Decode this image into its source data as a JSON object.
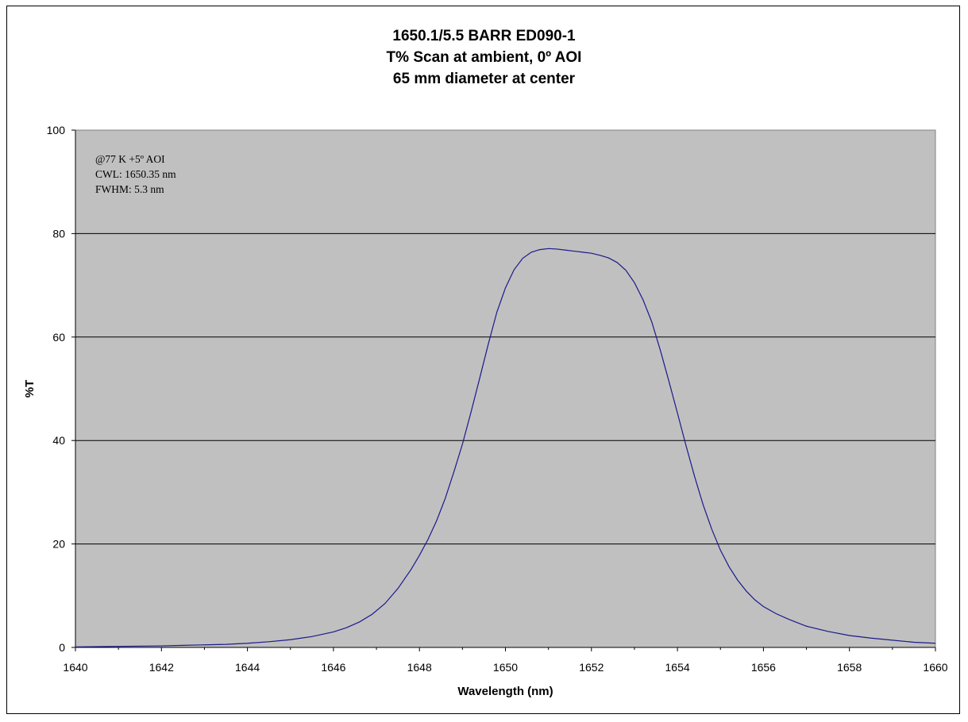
{
  "chart_data": {
    "type": "line",
    "title": "1650.1/5.5 BARR ED090-1",
    "subtitle_lines": [
      "T%  Scan at ambient, 0º AOI",
      "65 mm diameter at center"
    ],
    "xlabel": "Wavelength (nm)",
    "ylabel": "%T",
    "xlim": [
      1640,
      1660
    ],
    "ylim": [
      0,
      100
    ],
    "x_ticks": [
      1640,
      1642,
      1644,
      1646,
      1648,
      1650,
      1652,
      1654,
      1656,
      1658,
      1660
    ],
    "x_tick_labels": [
      "1640",
      "1642",
      "1644",
      "1646",
      "1648",
      "1650",
      "1652",
      "1654",
      "1656",
      "1658",
      "1660"
    ],
    "y_ticks": [
      0,
      20,
      40,
      60,
      80,
      100
    ],
    "y_tick_labels": [
      "0",
      "20",
      "40",
      "60",
      "80",
      "100"
    ],
    "grid": "horizontal",
    "legend": "none",
    "plot_background": "#c0c0c0",
    "line_color": "#1a1a8c",
    "annotations": [
      "@77 K   +5º AOI",
      "CWL: 1650.35 nm",
      "FWHM: 5.3 nm"
    ],
    "series": [
      {
        "x": [
          1640,
          1641,
          1642,
          1642.5,
          1643,
          1643.5,
          1644,
          1644.5,
          1645,
          1645.5,
          1646,
          1646.3,
          1646.6,
          1646.9,
          1647.2,
          1647.5,
          1647.8,
          1648.0,
          1648.2,
          1648.4,
          1648.6,
          1648.8,
          1649.0,
          1649.2,
          1649.4,
          1649.6,
          1649.8,
          1650.0,
          1650.2,
          1650.4,
          1650.6,
          1650.8,
          1651.0,
          1651.2,
          1651.4,
          1651.6,
          1651.8,
          1652.0,
          1652.2,
          1652.4,
          1652.6,
          1652.8,
          1653.0,
          1653.2,
          1653.4,
          1653.6,
          1653.8,
          1654.0,
          1654.2,
          1654.4,
          1654.6,
          1654.8,
          1655.0,
          1655.2,
          1655.4,
          1655.6,
          1655.8,
          1656.0,
          1656.3,
          1656.6,
          1657.0,
          1657.5,
          1658,
          1658.5,
          1659,
          1659.5,
          1660
        ],
        "y": [
          0.1,
          0.2,
          0.3,
          0.4,
          0.5,
          0.6,
          0.8,
          1.1,
          1.5,
          2.1,
          3.0,
          3.8,
          4.9,
          6.4,
          8.5,
          11.4,
          15.0,
          17.8,
          20.9,
          24.5,
          28.8,
          33.9,
          39.3,
          45.5,
          52.0,
          58.6,
          64.8,
          69.5,
          73.0,
          75.2,
          76.4,
          76.9,
          77.1,
          77.0,
          76.8,
          76.6,
          76.4,
          76.2,
          75.8,
          75.3,
          74.4,
          72.9,
          70.5,
          67.2,
          63.0,
          57.5,
          51.5,
          45.3,
          39.0,
          33.0,
          27.5,
          22.8,
          18.8,
          15.6,
          13.0,
          10.9,
          9.2,
          7.9,
          6.5,
          5.4,
          4.1,
          3.1,
          2.3,
          1.8,
          1.4,
          1.0,
          0.8
        ]
      }
    ]
  }
}
